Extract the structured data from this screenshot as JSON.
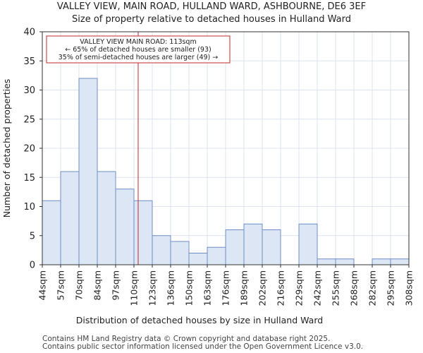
{
  "title_line1": "VALLEY VIEW, MAIN ROAD, HULLAND WARD, ASHBOURNE, DE6 3EF",
  "title_line2": "Size of property relative to detached houses in Hulland Ward",
  "footer_line1": "Contains HM Land Registry data © Crown copyright and database right 2025.",
  "footer_line2": "Contains public sector information licensed under the Open Government Licence v3.0.",
  "colors": {
    "bar_fill": "#dce6f5",
    "bar_stroke": "#6d8fc7",
    "marker": "#c0282a",
    "grid": "#dde4f0"
  },
  "chart_data": {
    "type": "bar",
    "xlabel": "Distribution of detached houses by size in Hulland Ward",
    "ylabel": "Number of detached properties",
    "ylim": [
      0,
      40
    ],
    "yticks": [
      0,
      5,
      10,
      15,
      20,
      25,
      30,
      35,
      40
    ],
    "bin_edges": [
      "44sqm",
      "57sqm",
      "70sqm",
      "84sqm",
      "97sqm",
      "110sqm",
      "123sqm",
      "136sqm",
      "150sqm",
      "163sqm",
      "176sqm",
      "189sqm",
      "202sqm",
      "216sqm",
      "229sqm",
      "242sqm",
      "255sqm",
      "268sqm",
      "282sqm",
      "295sqm",
      "308sqm"
    ],
    "values": [
      11,
      16,
      32,
      16,
      13,
      11,
      5,
      4,
      2,
      3,
      6,
      7,
      6,
      0,
      7,
      1,
      1,
      0,
      1,
      1
    ],
    "marker_bin_position": 5.23,
    "annotation": [
      "VALLEY VIEW MAIN ROAD: 113sqm",
      "← 65% of detached houses are smaller (93)",
      "35% of semi-detached houses are larger (49) →"
    ]
  }
}
